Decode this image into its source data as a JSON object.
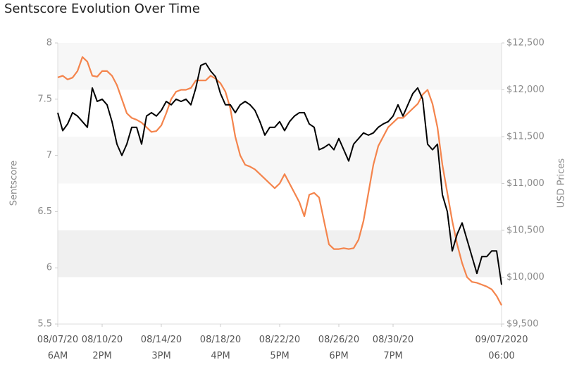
{
  "chart_data": {
    "type": "line",
    "title": "Sentscore Evolution Over Time",
    "ylabel": "Sentscore",
    "y2label": "USD Prices",
    "categories": [
      "08/07/20 6AM",
      null,
      null,
      null,
      null,
      null,
      null,
      null,
      null,
      "08/10/20 2PM",
      null,
      null,
      null,
      null,
      null,
      null,
      null,
      null,
      null,
      null,
      null,
      "08/14/20 3PM",
      null,
      null,
      null,
      null,
      null,
      null,
      null,
      null,
      null,
      null,
      null,
      "08/18/20 4PM",
      null,
      null,
      null,
      null,
      null,
      null,
      null,
      null,
      null,
      null,
      null,
      "08/22/20 5PM",
      null,
      null,
      null,
      null,
      null,
      null,
      null,
      null,
      null,
      null,
      null,
      "08/26/20 6PM",
      null,
      null,
      null,
      null,
      null,
      null,
      null,
      null,
      null,
      null,
      "08/30/20 7PM",
      null,
      null,
      null,
      null,
      null,
      null,
      null,
      null,
      null,
      null,
      null,
      null,
      null,
      null,
      null,
      null,
      null,
      null,
      null,
      null,
      null,
      "09/07/2020 06:00"
    ],
    "series": [
      {
        "name": "Sentscore",
        "color": "#000000",
        "axis": "y",
        "values": [
          7.38,
          7.22,
          7.28,
          7.38,
          7.35,
          7.3,
          7.25,
          7.6,
          7.48,
          7.5,
          7.45,
          7.3,
          7.1,
          7.0,
          7.1,
          7.25,
          7.25,
          7.1,
          7.35,
          7.38,
          7.35,
          7.4,
          7.48,
          7.45,
          7.5,
          7.48,
          7.5,
          7.45,
          7.6,
          7.8,
          7.82,
          7.75,
          7.7,
          7.55,
          7.45,
          7.45,
          7.38,
          7.45,
          7.48,
          7.45,
          7.4,
          7.3,
          7.18,
          7.25,
          7.25,
          7.3,
          7.22,
          7.3,
          7.35,
          7.38,
          7.38,
          7.28,
          7.25,
          7.05,
          7.07,
          7.1,
          7.05,
          7.15,
          7.05,
          6.95,
          7.1,
          7.15,
          7.2,
          7.18,
          7.2,
          7.25,
          7.28,
          7.3,
          7.35,
          7.45,
          7.35,
          7.45,
          7.55,
          7.6,
          7.5,
          7.1,
          7.05,
          7.1,
          6.65,
          6.5,
          6.15,
          6.3,
          6.4,
          6.25,
          6.1,
          5.95,
          6.1,
          6.1,
          6.15,
          6.15,
          5.85
        ]
      },
      {
        "name": "USD Prices",
        "color": "#f4844c",
        "axis": "y2",
        "values": [
          12132,
          12150,
          12110,
          12130,
          12200,
          12350,
          12300,
          12150,
          12140,
          12200,
          12200,
          12150,
          12050,
          11900,
          11750,
          11700,
          11680,
          11650,
          11600,
          11550,
          11560,
          11620,
          11750,
          11900,
          11980,
          12000,
          12000,
          12020,
          12100,
          12100,
          12100,
          12150,
          12120,
          12070,
          11980,
          11800,
          11500,
          11300,
          11200,
          11180,
          11150,
          11100,
          11050,
          11000,
          10950,
          11000,
          11100,
          11000,
          10900,
          10800,
          10650,
          10880,
          10900,
          10850,
          10600,
          10350,
          10300,
          10300,
          10310,
          10300,
          10310,
          10400,
          10600,
          10900,
          11200,
          11400,
          11500,
          11600,
          11650,
          11700,
          11700,
          11750,
          11800,
          11850,
          11950,
          12000,
          11850,
          11600,
          11200,
          10900,
          10600,
          10350,
          10150,
          10000,
          9950,
          9940,
          9920,
          9900,
          9870,
          9800,
          9700
        ]
      }
    ],
    "ylim": [
      5.5,
      8
    ],
    "yticks": [
      5.5,
      6,
      6.5,
      7,
      7.5,
      8
    ],
    "y2lim": [
      9500,
      12500
    ],
    "y2ticks": [
      {
        "value": 9500,
        "label": "$9,500"
      },
      {
        "value": 10000,
        "label": "$10,000"
      },
      {
        "value": 10500,
        "label": "$10,500"
      },
      {
        "value": 11000,
        "label": "$11,000"
      },
      {
        "value": 11500,
        "label": "$11,500"
      },
      {
        "value": 12000,
        "label": "$12,000"
      },
      {
        "value": 12500,
        "label": "$12,500"
      }
    ],
    "bands": true
  }
}
